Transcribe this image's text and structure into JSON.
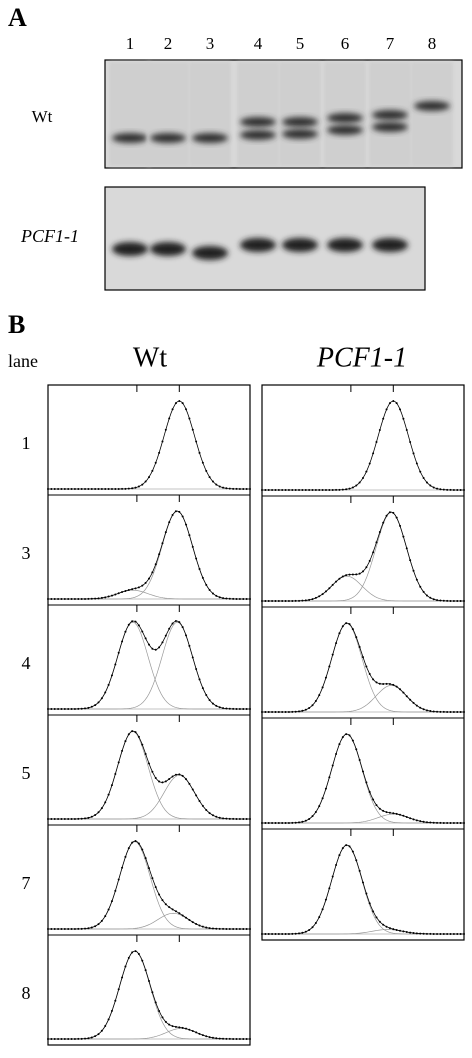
{
  "panel_a": {
    "label": "A",
    "lanes": [
      "1",
      "2",
      "3",
      "4",
      "5",
      "6",
      "7",
      "8"
    ],
    "gels": [
      {
        "label": "Wt"
      },
      {
        "label": "PCF1-1"
      }
    ]
  },
  "panel_b": {
    "label": "B",
    "lane_header": "lane",
    "row_labels": [
      "1",
      "3",
      "4",
      "5",
      "7",
      "8"
    ],
    "columns": [
      {
        "title": "Wt"
      },
      {
        "title": "PCF1-1"
      }
    ]
  }
}
